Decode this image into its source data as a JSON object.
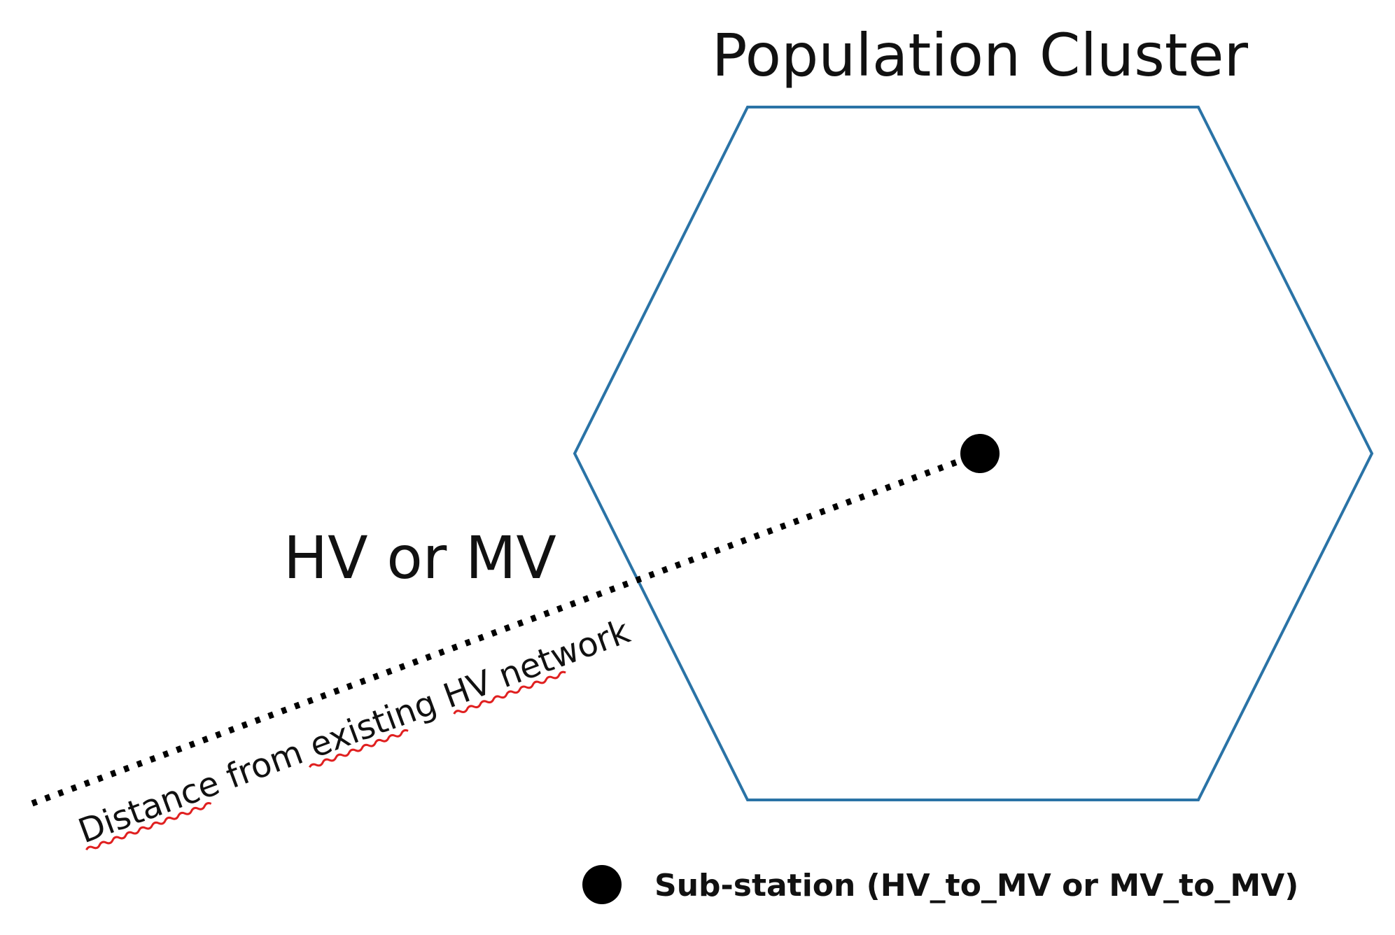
{
  "diagram": {
    "title": "Population Cluster",
    "line_label": "HV or MV",
    "distance_label": "Distance from existing HV network",
    "legend": {
      "marker": "filled-circle",
      "label": "Sub-station (HV_to_MV or MV_to_MV)"
    },
    "colors": {
      "hexagon_stroke": "#2a73a6",
      "line": "#000000",
      "substation": "#000000",
      "spellcheck_underline": "#e02020",
      "text": "#111111"
    }
  }
}
